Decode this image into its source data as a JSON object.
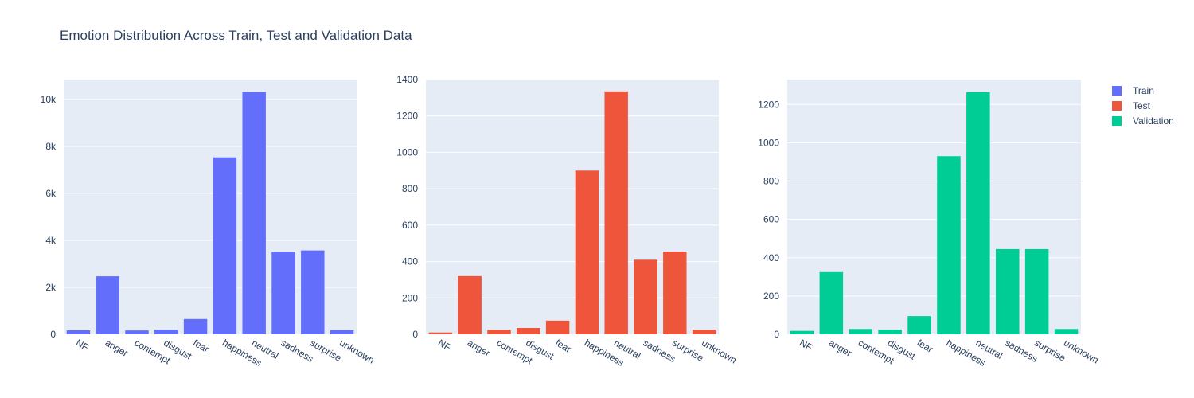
{
  "chart_data": {
    "type": "bar",
    "title": "Emotion Distribution Across Train, Test and Validation Data",
    "categories": [
      "NF",
      "anger",
      "contempt",
      "disgust",
      "fear",
      "happiness",
      "neutral",
      "sadness",
      "surprise",
      "unknown"
    ],
    "series": [
      {
        "name": "Train",
        "color": "#636efa",
        "values": [
          170,
          2470,
          165,
          200,
          650,
          7530,
          10310,
          3520,
          3570,
          180
        ],
        "ylim": [
          0,
          10840
        ],
        "ticks": [
          0,
          2000,
          4000,
          6000,
          8000,
          10000
        ],
        "tick_labels": [
          "0",
          "2k",
          "4k",
          "6k",
          "8k",
          "10k"
        ]
      },
      {
        "name": "Test",
        "color": "#ef553b",
        "values": [
          10,
          320,
          25,
          35,
          75,
          900,
          1335,
          410,
          455,
          25
        ],
        "ylim": [
          0,
          1400
        ],
        "ticks": [
          0,
          200,
          400,
          600,
          800,
          1000,
          1200,
          1400
        ],
        "tick_labels": [
          "0",
          "200",
          "400",
          "600",
          "800",
          "1000",
          "1200",
          "1400"
        ]
      },
      {
        "name": "Validation",
        "color": "#00cc96",
        "values": [
          18,
          325,
          28,
          25,
          95,
          930,
          1265,
          445,
          445,
          28
        ],
        "ylim": [
          0,
          1330
        ],
        "ticks": [
          0,
          200,
          400,
          600,
          800,
          1000,
          1200
        ],
        "tick_labels": [
          "0",
          "200",
          "400",
          "600",
          "800",
          "1000",
          "1200"
        ]
      }
    ],
    "grid": true,
    "legend": "top-right"
  }
}
